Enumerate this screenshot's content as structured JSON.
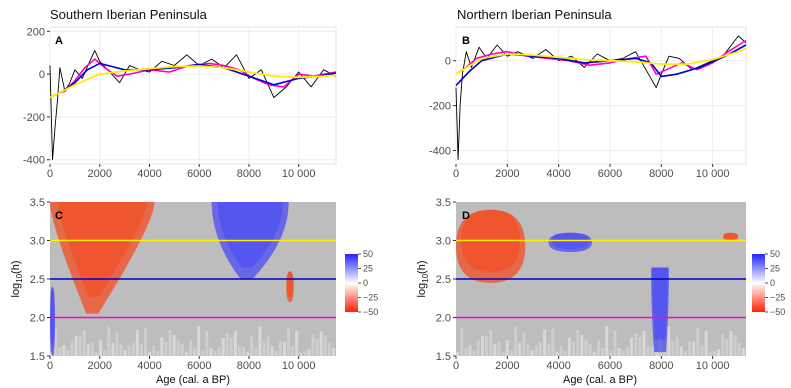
{
  "figure": {
    "xlabel": "Age (cal. a BP)",
    "ylabel_top": "",
    "ylabel_bottom_prefix": "log",
    "ylabel_bottom_sub": "10",
    "ylabel_bottom_suffix": "(h)",
    "colorbar_ticks": [
      "50",
      "25",
      "0",
      "−25",
      "−50"
    ]
  },
  "chart_data": [
    {
      "type": "line",
      "panel": "A",
      "title": "Southern Iberian Peninsula",
      "xlim": [
        0,
        11500
      ],
      "ylim": [
        -420,
        220
      ],
      "x_ticks": [
        0,
        2000,
        4000,
        6000,
        8000,
        10000
      ],
      "x_tick_labels": [
        "0",
        "2000",
        "4000",
        "6000",
        "8000",
        "10 000"
      ],
      "y_ticks": [
        -400,
        -200,
        0,
        200
      ],
      "grid": true,
      "series": [
        {
          "color": "#000000",
          "x": [
            0,
            100,
            200,
            300,
            400,
            600,
            800,
            1000,
            1300,
            1600,
            1800,
            2000,
            2400,
            2800,
            3200,
            3600,
            4000,
            4500,
            5000,
            5500,
            6000,
            6500,
            7000,
            7500,
            8000,
            8500,
            9000,
            9500,
            10000,
            10500,
            11000,
            11500
          ],
          "y": [
            40,
            -400,
            -250,
            -120,
            30,
            -80,
            -40,
            20,
            -20,
            60,
            110,
            60,
            10,
            -40,
            40,
            20,
            10,
            60,
            40,
            90,
            40,
            70,
            30,
            90,
            -20,
            20,
            -110,
            -60,
            10,
            -60,
            20,
            -10
          ]
        },
        {
          "color": "#ff00cc",
          "x": [
            0,
            300,
            600,
            1000,
            1400,
            1800,
            2200,
            2700,
            3200,
            4000,
            4800,
            5600,
            6400,
            7000,
            7600,
            8200,
            8800,
            9400,
            10000,
            10600,
            11500
          ],
          "y": [
            -110,
            -90,
            -80,
            -30,
            30,
            70,
            30,
            -10,
            0,
            20,
            10,
            40,
            50,
            40,
            20,
            -20,
            -50,
            -60,
            0,
            -10,
            10
          ]
        },
        {
          "color": "#0000cc",
          "x": [
            0,
            500,
            1000,
            1500,
            2000,
            3000,
            4000,
            5000,
            6000,
            7000,
            8000,
            9000,
            10000,
            11000,
            11500
          ],
          "y": [
            -110,
            -80,
            -40,
            20,
            50,
            20,
            20,
            30,
            45,
            30,
            -10,
            -50,
            -20,
            -5,
            5
          ]
        },
        {
          "color": "#ffee00",
          "x": [
            0,
            1000,
            2000,
            3000,
            4000,
            5000,
            6000,
            7000,
            8000,
            9000,
            10000,
            11000,
            11500
          ],
          "y": [
            -110,
            -50,
            0,
            15,
            25,
            35,
            38,
            30,
            10,
            -10,
            -15,
            -10,
            -5
          ]
        }
      ]
    },
    {
      "type": "line",
      "panel": "B",
      "title": "Northern Iberian Peninsula",
      "xlim": [
        0,
        11300
      ],
      "ylim": [
        -460,
        150
      ],
      "x_ticks": [
        0,
        2000,
        4000,
        6000,
        8000,
        10000
      ],
      "x_tick_labels": [
        "0",
        "2000",
        "4000",
        "6000",
        "8000",
        "10 000"
      ],
      "y_ticks": [
        -400,
        -200,
        0
      ],
      "grid": true,
      "series": [
        {
          "color": "#000000",
          "x": [
            0,
            80,
            160,
            250,
            400,
            600,
            900,
            1200,
            1600,
            2000,
            2400,
            3000,
            3500,
            4000,
            4500,
            5000,
            5500,
            6000,
            6500,
            7000,
            7500,
            7800,
            8000,
            8300,
            8700,
            9200,
            9800,
            10400,
            11000,
            11300
          ],
          "y": [
            -120,
            -440,
            -200,
            -60,
            40,
            -30,
            60,
            10,
            70,
            20,
            40,
            10,
            50,
            0,
            20,
            -30,
            30,
            0,
            10,
            40,
            -60,
            -120,
            -60,
            20,
            10,
            -40,
            -10,
            20,
            110,
            80
          ]
        },
        {
          "color": "#ff00cc",
          "x": [
            0,
            400,
            800,
            1400,
            2000,
            2800,
            3600,
            4400,
            5200,
            6000,
            6800,
            7400,
            7800,
            8200,
            8800,
            9400,
            10000,
            10600,
            11300
          ],
          "y": [
            -60,
            -30,
            10,
            30,
            40,
            20,
            10,
            0,
            -20,
            -10,
            10,
            20,
            -60,
            -40,
            -10,
            -40,
            -10,
            40,
            90
          ]
        },
        {
          "color": "#0000cc",
          "x": [
            0,
            500,
            1000,
            2000,
            3000,
            4000,
            5000,
            6000,
            7000,
            7600,
            8000,
            8600,
            9500,
            10500,
            11300
          ],
          "y": [
            -110,
            -50,
            0,
            30,
            20,
            10,
            -10,
            0,
            10,
            -10,
            -70,
            -60,
            -30,
            20,
            70
          ]
        },
        {
          "color": "#ffee00",
          "x": [
            0,
            1000,
            2000,
            3000,
            4000,
            5000,
            6000,
            7000,
            8000,
            9000,
            10000,
            11000,
            11300
          ],
          "y": [
            -60,
            10,
            30,
            25,
            15,
            5,
            0,
            -5,
            -15,
            -15,
            5,
            40,
            55
          ]
        }
      ]
    },
    {
      "type": "heatmap",
      "panel": "C",
      "xlim": [
        0,
        11500
      ],
      "ylim": [
        1.5,
        3.5
      ],
      "x_ticks": [
        0,
        2000,
        4000,
        6000,
        8000,
        10000
      ],
      "x_tick_labels": [
        "0",
        "2000",
        "4000",
        "6000",
        "8000",
        "10 000"
      ],
      "y_ticks": [
        1.5,
        2.0,
        2.5,
        3.0,
        3.5
      ],
      "y_tick_labels": [
        "1.5",
        "2.0",
        "2.5",
        "3.0",
        "3.5"
      ],
      "color_scale": {
        "min": -50,
        "max": 50,
        "neg_color": "#ff3300",
        "pos_color": "#3333ff",
        "na_color": "#bdbdbd"
      },
      "hlines": [
        {
          "y": 3.0,
          "color": "#ffee00"
        },
        {
          "y": 2.5,
          "color": "#0000cc"
        },
        {
          "y": 2.0,
          "color": "#ff00cc"
        }
      ],
      "blobs": [
        {
          "sign": -1,
          "x": [
            0,
            4200
          ],
          "y_top": 3.5,
          "y_bottom": 2.95,
          "tail_x": 1700,
          "tail_y": 2.05
        },
        {
          "sign": 1,
          "x": [
            6500,
            9600
          ],
          "y_top": 3.5,
          "y_bottom": 2.5,
          "tail_x": 7900
        },
        {
          "sign": -1,
          "x": [
            9500,
            9800
          ],
          "y_top": 2.6,
          "y_bottom": 2.2
        },
        {
          "sign": 1,
          "x": [
            0,
            200
          ],
          "y_top": 2.4,
          "y_bottom": 1.5
        }
      ]
    },
    {
      "type": "heatmap",
      "panel": "D",
      "xlim": [
        0,
        11300
      ],
      "ylim": [
        1.5,
        3.5
      ],
      "x_ticks": [
        0,
        2000,
        4000,
        6000,
        8000,
        10000
      ],
      "x_tick_labels": [
        "0",
        "2000",
        "4000",
        "6000",
        "8000",
        "10 000"
      ],
      "y_ticks": [
        1.5,
        2.0,
        2.5,
        3.0,
        3.5
      ],
      "y_tick_labels": [
        "1.5",
        "2.0",
        "2.5",
        "3.0",
        "3.5"
      ],
      "color_scale": {
        "min": -50,
        "max": 50,
        "neg_color": "#ff3300",
        "pos_color": "#3333ff",
        "na_color": "#bdbdbd"
      },
      "hlines": [
        {
          "y": 3.0,
          "color": "#ffee00"
        },
        {
          "y": 2.5,
          "color": "#0000cc"
        },
        {
          "y": 2.0,
          "color": "#ff00cc"
        }
      ],
      "blobs": [
        {
          "sign": -1,
          "x": [
            0,
            2700
          ],
          "y_top": 3.4,
          "y_bottom": 2.45
        },
        {
          "sign": 1,
          "x": [
            3600,
            5300
          ],
          "y_top": 3.1,
          "y_bottom": 2.85
        },
        {
          "sign": 1,
          "x": [
            7600,
            8300
          ],
          "y_top": 2.65,
          "y_bottom": 1.55,
          "tail_x": 7950
        },
        {
          "sign": -1,
          "x": [
            10400,
            11000
          ],
          "y_top": 3.1,
          "y_bottom": 3.0
        }
      ]
    }
  ]
}
